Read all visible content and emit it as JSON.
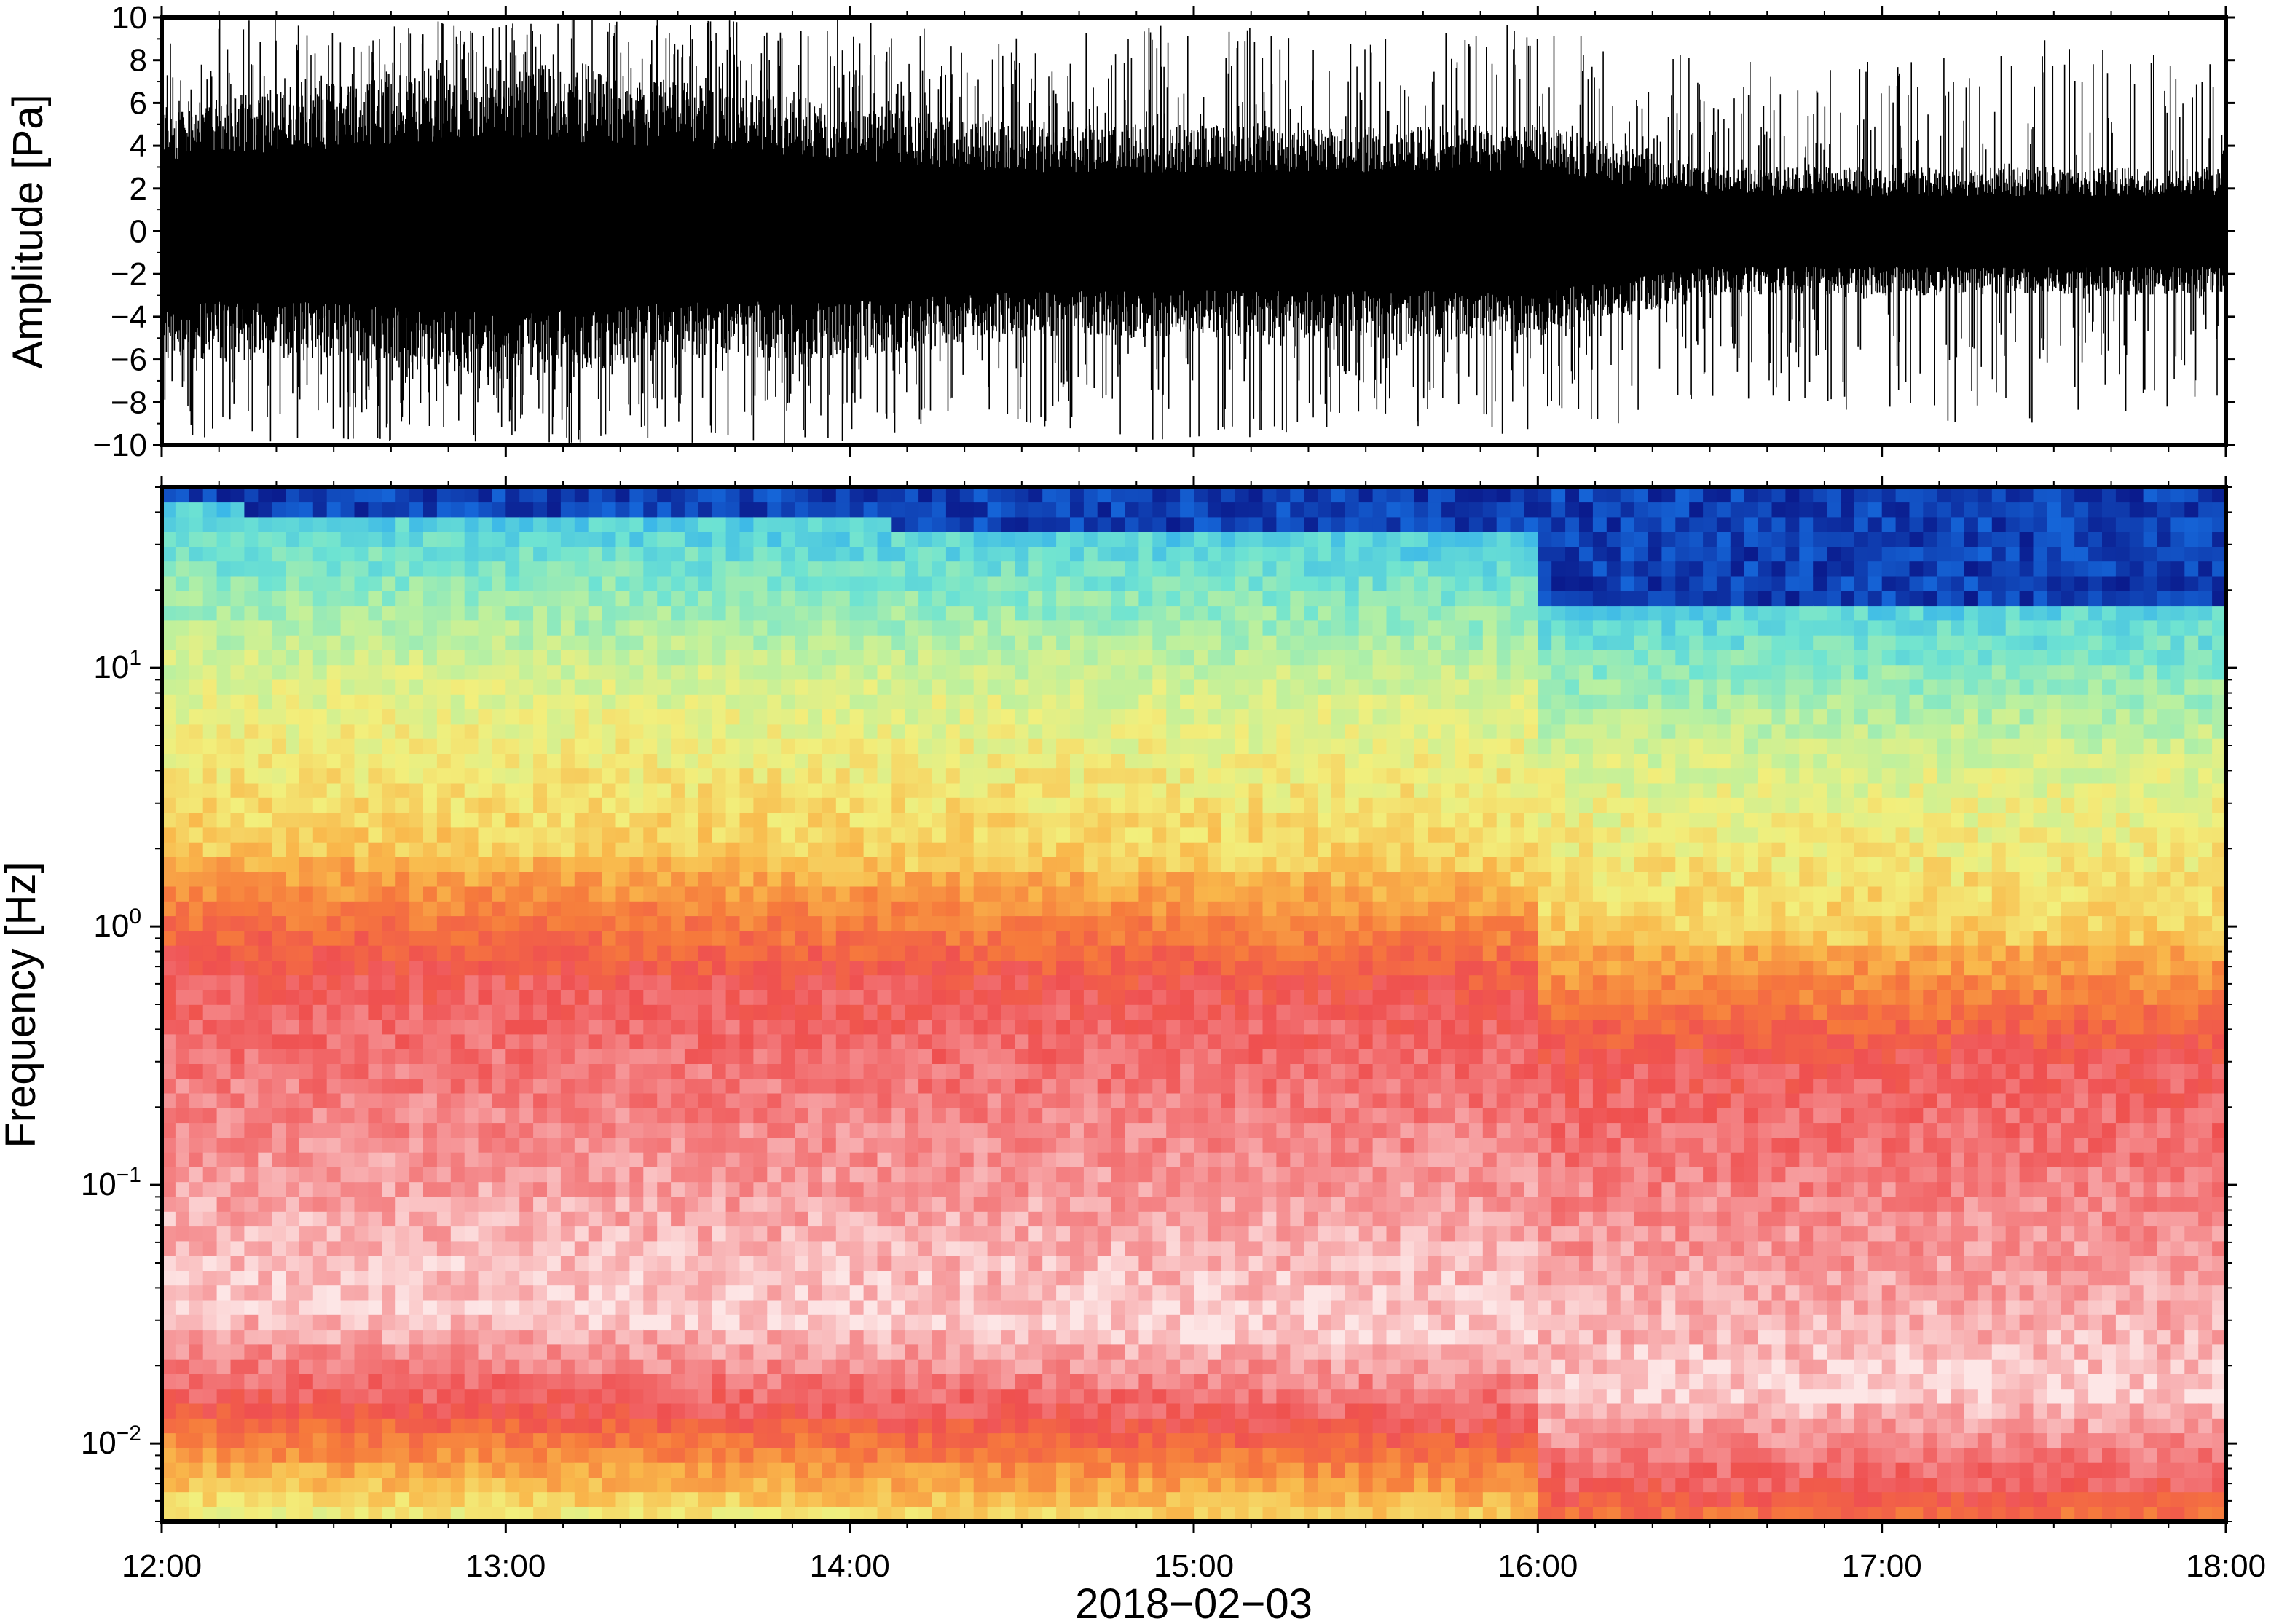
{
  "chart_data": [
    {
      "type": "line",
      "panel": "waveform",
      "ylabel": "Amplitude [Pa]",
      "ylim": [
        -10,
        10
      ],
      "y_ticks": [
        10,
        8,
        6,
        4,
        2,
        0,
        -2,
        -4,
        -6,
        -8,
        -10
      ],
      "y_tick_labels": [
        "10",
        "8",
        "6",
        "4",
        "2",
        "0",
        "−2",
        "−4",
        "−6",
        "−8",
        "−10"
      ],
      "xlim": [
        "12:00",
        "18:00"
      ],
      "series": [
        {
          "color": "#000000",
          "x": [
            "12:00",
            "12:30",
            "13:00",
            "13:30",
            "14:00",
            "14:30",
            "15:00",
            "15:30",
            "16:00",
            "16:30",
            "17:00",
            "17:30",
            "18:00"
          ],
          "envelope_max": [
            6,
            7,
            8,
            7,
            6,
            5,
            5,
            5,
            5,
            3,
            3,
            3,
            3
          ],
          "envelope_min": [
            -6,
            -6,
            -7,
            -6,
            -6,
            -5,
            -5,
            -5,
            -5,
            -3,
            -3,
            -3,
            -3
          ],
          "peak_max": [
            10,
            10,
            10,
            10,
            10,
            9,
            10,
            9,
            10,
            8,
            8,
            9,
            8
          ],
          "peak_min": [
            -10,
            -10,
            -10,
            -10,
            -10,
            -9,
            -10,
            -9,
            -10,
            -8,
            -9,
            -9,
            -8
          ]
        }
      ],
      "grid": false
    },
    {
      "type": "heatmap",
      "panel": "spectrogram",
      "ylabel": "Frequency [Hz]",
      "xlabel": "2018−02−03",
      "y_scale": "log",
      "ylim": [
        0.005,
        50
      ],
      "y_ticks": [
        0.01,
        0.1,
        1,
        10
      ],
      "y_tick_labels": [
        {
          "base": "10",
          "exp": "−2"
        },
        {
          "base": "10",
          "exp": "−1"
        },
        {
          "base": "10",
          "exp": "0"
        },
        {
          "base": "10",
          "exp": "1"
        }
      ],
      "x_ticks": [
        "12:00",
        "13:00",
        "14:00",
        "15:00",
        "16:00",
        "17:00",
        "18:00"
      ],
      "xlim": [
        "12:00",
        "18:00"
      ],
      "colormap": [
        "#0a1a8c",
        "#1565d8",
        "#37b4ea",
        "#6ee3d2",
        "#b9f0a0",
        "#f2ef7c",
        "#f9b84b",
        "#f67a3c",
        "#ef5050",
        "#f58f91",
        "#fde6e6"
      ],
      "description_levels": "high power (red) below ~1 Hz, decreasing through yellow/green to blue near 40 Hz; band edge shifts lower after 16:00",
      "grid": false
    }
  ]
}
